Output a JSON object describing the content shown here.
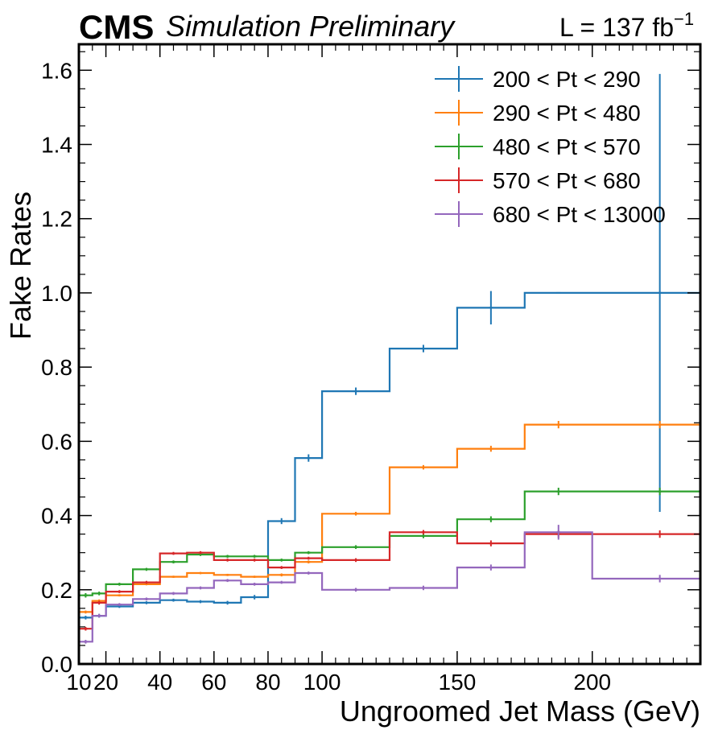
{
  "header": {
    "experiment": "CMS",
    "status": "Simulation Preliminary",
    "lumi_prefix": "L = 137 fb",
    "lumi_exponent": "−1"
  },
  "chart_data": {
    "type": "step",
    "xlabel": "Ungroomed Jet Mass (GeV)",
    "ylabel": "Fake Rates",
    "xlim": [
      10,
      240
    ],
    "ylim": [
      0,
      1.67
    ],
    "x_ticks": [
      10,
      20,
      40,
      60,
      80,
      100,
      150,
      200
    ],
    "x_tick_labels": [
      "10",
      "20",
      "40",
      "60",
      "80",
      "100",
      "150",
      "200"
    ],
    "y_ticks": [
      0.0,
      0.2,
      0.4,
      0.6,
      0.8,
      1.0,
      1.2,
      1.4,
      1.6
    ],
    "y_tick_labels": [
      "0.0",
      "0.2",
      "0.4",
      "0.6",
      "0.8",
      "1.0",
      "1.2",
      "1.4",
      "1.6"
    ],
    "bin_edges": [
      10,
      15,
      20,
      30,
      40,
      50,
      60,
      70,
      80,
      90,
      100,
      125,
      150,
      175,
      200,
      250
    ],
    "legend_position": "top-right",
    "series": [
      {
        "name": "200 < Pt < 290",
        "color": "#1f77b4",
        "values": [
          0.125,
          0.13,
          0.155,
          0.165,
          0.172,
          0.168,
          0.165,
          0.18,
          0.385,
          0.555,
          0.735,
          0.85,
          0.96,
          1.0,
          1.0
        ],
        "errors": [
          0.005,
          0.005,
          0.004,
          0.004,
          0.004,
          0.004,
          0.005,
          0.006,
          0.008,
          0.01,
          0.01,
          0.01,
          0.045,
          0.0,
          0.59
        ]
      },
      {
        "name": "290 < Pt < 480",
        "color": "#ff7f0e",
        "values": [
          0.14,
          0.17,
          0.185,
          0.215,
          0.235,
          0.245,
          0.24,
          0.235,
          0.24,
          0.275,
          0.405,
          0.53,
          0.58,
          0.645,
          0.645
        ],
        "errors": [
          0.004,
          0.004,
          0.003,
          0.003,
          0.003,
          0.003,
          0.003,
          0.003,
          0.004,
          0.004,
          0.005,
          0.006,
          0.008,
          0.01,
          0.01
        ]
      },
      {
        "name": "480 < Pt < 570",
        "color": "#2ca02c",
        "values": [
          0.185,
          0.19,
          0.215,
          0.255,
          0.275,
          0.295,
          0.29,
          0.29,
          0.28,
          0.3,
          0.315,
          0.345,
          0.39,
          0.465,
          0.465
        ],
        "errors": [
          0.006,
          0.005,
          0.004,
          0.004,
          0.004,
          0.004,
          0.004,
          0.004,
          0.004,
          0.004,
          0.005,
          0.006,
          0.008,
          0.01,
          0.01
        ]
      },
      {
        "name": "570 < Pt < 680",
        "color": "#d62728",
        "values": [
          0.095,
          0.165,
          0.195,
          0.22,
          0.298,
          0.3,
          0.28,
          0.28,
          0.26,
          0.285,
          0.28,
          0.355,
          0.325,
          0.35,
          0.35
        ],
        "errors": [
          0.005,
          0.005,
          0.004,
          0.004,
          0.004,
          0.004,
          0.004,
          0.004,
          0.004,
          0.004,
          0.005,
          0.006,
          0.008,
          0.01,
          0.01
        ]
      },
      {
        "name": "680 < Pt < 13000",
        "color": "#9467bd",
        "values": [
          0.06,
          0.13,
          0.16,
          0.175,
          0.19,
          0.205,
          0.225,
          0.215,
          0.22,
          0.245,
          0.2,
          0.205,
          0.26,
          0.355,
          0.23
        ],
        "errors": [
          0.005,
          0.005,
          0.004,
          0.004,
          0.004,
          0.004,
          0.004,
          0.004,
          0.004,
          0.004,
          0.005,
          0.006,
          0.008,
          0.02,
          0.01
        ]
      }
    ]
  }
}
